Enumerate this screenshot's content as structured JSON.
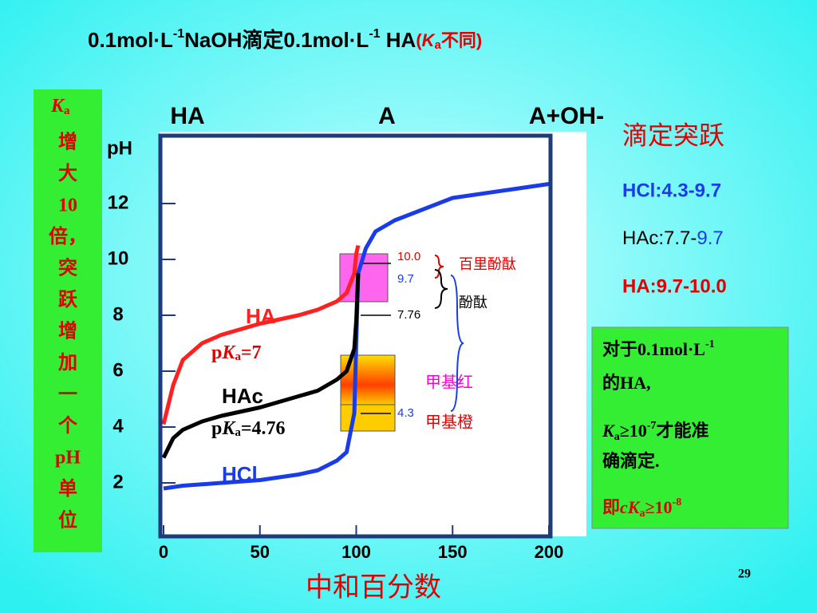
{
  "chart_data": {
    "type": "line",
    "title": {
      "a": "0.1mol·L",
      "b": "-1",
      "c": "NaOH滴定0.1mol·L",
      "d": "-1",
      "e": " HA",
      "f": "(",
      "g": "K",
      "h": "a",
      "i": "不同)"
    },
    "x_label": "中和百分数",
    "y_label": "pH",
    "top_labels": [
      "HA",
      "A",
      "A+OH-"
    ],
    "xlim": [
      0,
      200
    ],
    "ylim": [
      0,
      14.4
    ],
    "xticks": [
      0,
      50,
      100,
      150,
      200
    ],
    "yticks": [
      2,
      4,
      6,
      8,
      10,
      12
    ],
    "x": [
      0,
      5,
      10,
      20,
      30,
      50,
      70,
      80,
      90,
      95,
      99,
      100,
      101,
      105,
      110,
      120,
      150,
      200
    ],
    "series": [
      {
        "name": "HCl",
        "color": "#1a3ce8",
        "values": [
          1.8,
          1.85,
          1.9,
          1.95,
          2.0,
          2.1,
          2.3,
          2.45,
          2.8,
          3.1,
          4.5,
          7.0,
          9.5,
          10.4,
          11.0,
          11.4,
          12.2,
          12.7
        ]
      },
      {
        "name": "HAc",
        "color": "#000000",
        "values": [
          2.9,
          3.6,
          3.9,
          4.2,
          4.4,
          4.7,
          5.1,
          5.3,
          5.7,
          6.0,
          6.8,
          7.8,
          9.5,
          null,
          null,
          null,
          null,
          null
        ]
      },
      {
        "name": "HA",
        "color": "#ff2020",
        "values": [
          4.1,
          5.5,
          6.4,
          7.0,
          7.3,
          7.7,
          8.0,
          8.2,
          8.5,
          8.8,
          9.5,
          10.2,
          10.5,
          null,
          null,
          null,
          null,
          null
        ]
      }
    ],
    "curve_labels": {
      "ha": "HA",
      "ha_pk": "p",
      "ha_k": "K",
      "ha_a": "a",
      "ha_v": "=7",
      "hac": "HAc",
      "hac_pk": "p",
      "hac_k": "K",
      "hac_a": "a",
      "hac_v": "=4.76",
      "hcl": "HCl"
    },
    "annotations": {
      "v100": "10.0",
      "v97": "9.7",
      "v776": "7.76",
      "v43": "4.3",
      "thymol": "百里酚酞",
      "phenol": "酚酞",
      "mred": "甲基红",
      "morange": "甲基橙"
    }
  },
  "jump_panel": {
    "title": "滴定突跃",
    "hcl": "HCl:4.3-9.7",
    "hac_a": "HAc:7.7-",
    "hac_b": "9.7",
    "ha": "HA:9.7-10.0"
  },
  "left_note": {
    "k": "K",
    "k_sub": "a",
    "lines": [
      "增",
      "大",
      "10",
      "倍，",
      "突",
      "跃",
      "增",
      "加",
      "一",
      "个",
      "pH",
      "单",
      "位"
    ]
  },
  "right_note": {
    "l1a": "对于0.1mol·L",
    "l1b": "-1",
    "l2": "的HA,",
    "l3a": "K",
    "l3b": "a",
    "l3c": "≥10",
    "l3d": "-7",
    "l3e": "才能准",
    "l4": "确滴定.",
    "l5a": "即",
    "l5b": "cK",
    "l5c": "a",
    "l5d": "≥10",
    "l5e": "-8"
  },
  "page_number": "29"
}
